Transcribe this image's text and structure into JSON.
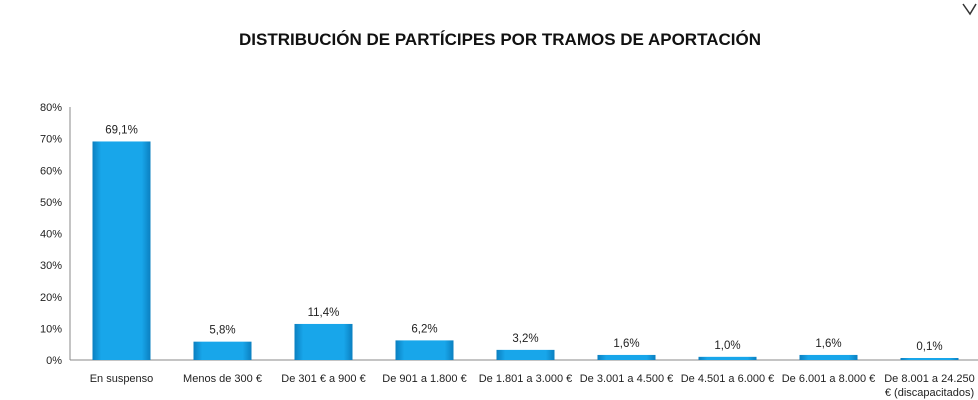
{
  "chart_data": {
    "type": "bar",
    "title": "DISTRIBUCIÓN DE PARTÍCIPES POR TRAMOS DE APORTACIÓN",
    "categories": [
      "En suspenso",
      "Menos de 300 €",
      "De 301 € a 900 €",
      "De 901 a 1.800 €",
      "De 1.801 a 3.000 €",
      "De 3.001 a 4.500 €",
      "De 4.501 a 6.000 €",
      "De 6.001 a 8.000 €",
      "De 8.001 a 24.250 € (discapacitados)"
    ],
    "category_lines": [
      [
        "En suspenso"
      ],
      [
        "Menos de 300 €"
      ],
      [
        "De 301 € a 900 €"
      ],
      [
        "De 901 a 1.800 €"
      ],
      [
        "De 1.801 a 3.000 €"
      ],
      [
        "De 3.001 a 4.500 €"
      ],
      [
        "De 4.501 a 6.000 €"
      ],
      [
        "De 6.001 a 8.000 €"
      ],
      [
        "De 8.001 a 24.250",
        "€ (discapacitados)"
      ]
    ],
    "values": [
      69.1,
      5.8,
      11.4,
      6.2,
      3.2,
      1.6,
      1.0,
      1.6,
      0.1
    ],
    "data_labels": [
      "69,1%",
      "5,8%",
      "11,4%",
      "6,2%",
      "3,2%",
      "1,6%",
      "1,0%",
      "1,6%",
      "0,1%"
    ],
    "yticks": [
      "0%",
      "10%",
      "20%",
      "30%",
      "40%",
      "50%",
      "60%",
      "70%",
      "80%"
    ],
    "ylim": [
      0,
      80
    ],
    "xlabel": "",
    "ylabel": "",
    "grid": false,
    "legend": "none",
    "bar_color": "#14a3e6"
  }
}
